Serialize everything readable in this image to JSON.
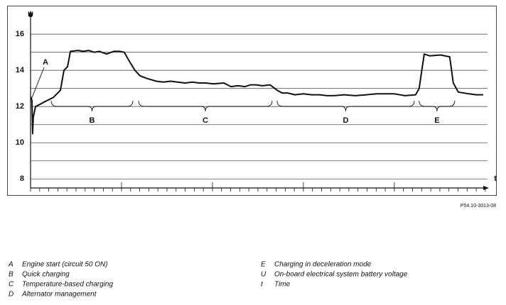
{
  "chart_data": {
    "type": "line",
    "ylabel": "U",
    "xlabel": "t",
    "figure_code": "P54.10-3013-08",
    "ylim": [
      7.5,
      17.3
    ],
    "yticks": [
      8,
      10,
      12,
      14,
      16
    ],
    "yminor": [
      9,
      11,
      13,
      15
    ],
    "xlim": [
      0,
      50.4
    ],
    "xticks": [
      0,
      1,
      2,
      3,
      4,
      5,
      6,
      7,
      8,
      9,
      10,
      11,
      12,
      13,
      14,
      15,
      16,
      17,
      18,
      19,
      20,
      21,
      22,
      23,
      24,
      25,
      26,
      27,
      28,
      29,
      30,
      31,
      32,
      33,
      34,
      35,
      36,
      37,
      38,
      39,
      40,
      41,
      42,
      43,
      44,
      45,
      46,
      47,
      48,
      49,
      50
    ],
    "xmajor": [
      10,
      20,
      30,
      40
    ],
    "grid": true,
    "series": [
      {
        "color": "#111111",
        "x": [
          0,
          0.08,
          0.16,
          0.23,
          0.3,
          0.55,
          0.94,
          1.5,
          2.5,
          3.28,
          3.67,
          4.06,
          4.38,
          5.23,
          5.8,
          6.4,
          7.0,
          7.58,
          8.36,
          9.14,
          9.8,
          10.31,
          10.86,
          11.48,
          12.03,
          12.81,
          13.83,
          14.6,
          15.4,
          16.17,
          17.0,
          17.8,
          18.52,
          19.3,
          20.08,
          21.25,
          22.03,
          22.8,
          23.59,
          24.2,
          24.77,
          25.5,
          26.33,
          27.11,
          27.66,
          28.28,
          29.06,
          30.0,
          30.9,
          31.8,
          32.6,
          33.36,
          34.5,
          35.7,
          36.9,
          38.05,
          39.0,
          40.0,
          41.17,
          42.34,
          42.73,
          43.28,
          43.91,
          45.08,
          46.09,
          46.48,
          47.03,
          48.2,
          49.0,
          49.77
        ],
        "values": [
          12.4,
          12.5,
          12.3,
          10.5,
          11.4,
          12.0,
          12.1,
          12.25,
          12.5,
          12.9,
          14.0,
          14.2,
          15.05,
          15.1,
          15.05,
          15.1,
          15.0,
          15.05,
          14.9,
          15.05,
          15.05,
          15.0,
          14.5,
          14.0,
          13.7,
          13.55,
          13.4,
          13.35,
          13.4,
          13.35,
          13.3,
          13.35,
          13.3,
          13.3,
          13.25,
          13.3,
          13.1,
          13.15,
          13.1,
          13.2,
          13.2,
          13.15,
          13.2,
          12.9,
          12.75,
          12.75,
          12.65,
          12.7,
          12.65,
          12.65,
          12.6,
          12.6,
          12.65,
          12.6,
          12.65,
          12.7,
          12.7,
          12.7,
          12.6,
          12.65,
          13.0,
          14.9,
          14.8,
          14.85,
          14.75,
          13.3,
          12.8,
          12.7,
          12.65,
          12.65
        ]
      }
    ],
    "annotations": [
      {
        "label": "A",
        "x": 0.16,
        "y": 12.5
      },
      {
        "label": "B",
        "x": [
          2.27,
          11.25
        ]
      },
      {
        "label": "C",
        "x": [
          11.88,
          26.56
        ]
      },
      {
        "label": "D",
        "x": [
          27.11,
          42.19
        ]
      },
      {
        "label": "E",
        "x": [
          42.73,
          46.64
        ]
      }
    ],
    "key": [
      {
        "key": "A",
        "text": "Engine start (circuit 50 ON)"
      },
      {
        "key": "B",
        "text": "Quick charging"
      },
      {
        "key": "C",
        "text": "Temperature-based charging"
      },
      {
        "key": "D",
        "text": "Alternator management"
      },
      {
        "key": "E",
        "text": "Charging in deceleration mode"
      },
      {
        "key": "U",
        "text": "On-board electrical system battery voltage"
      },
      {
        "key": "t",
        "text": "Time"
      }
    ]
  }
}
